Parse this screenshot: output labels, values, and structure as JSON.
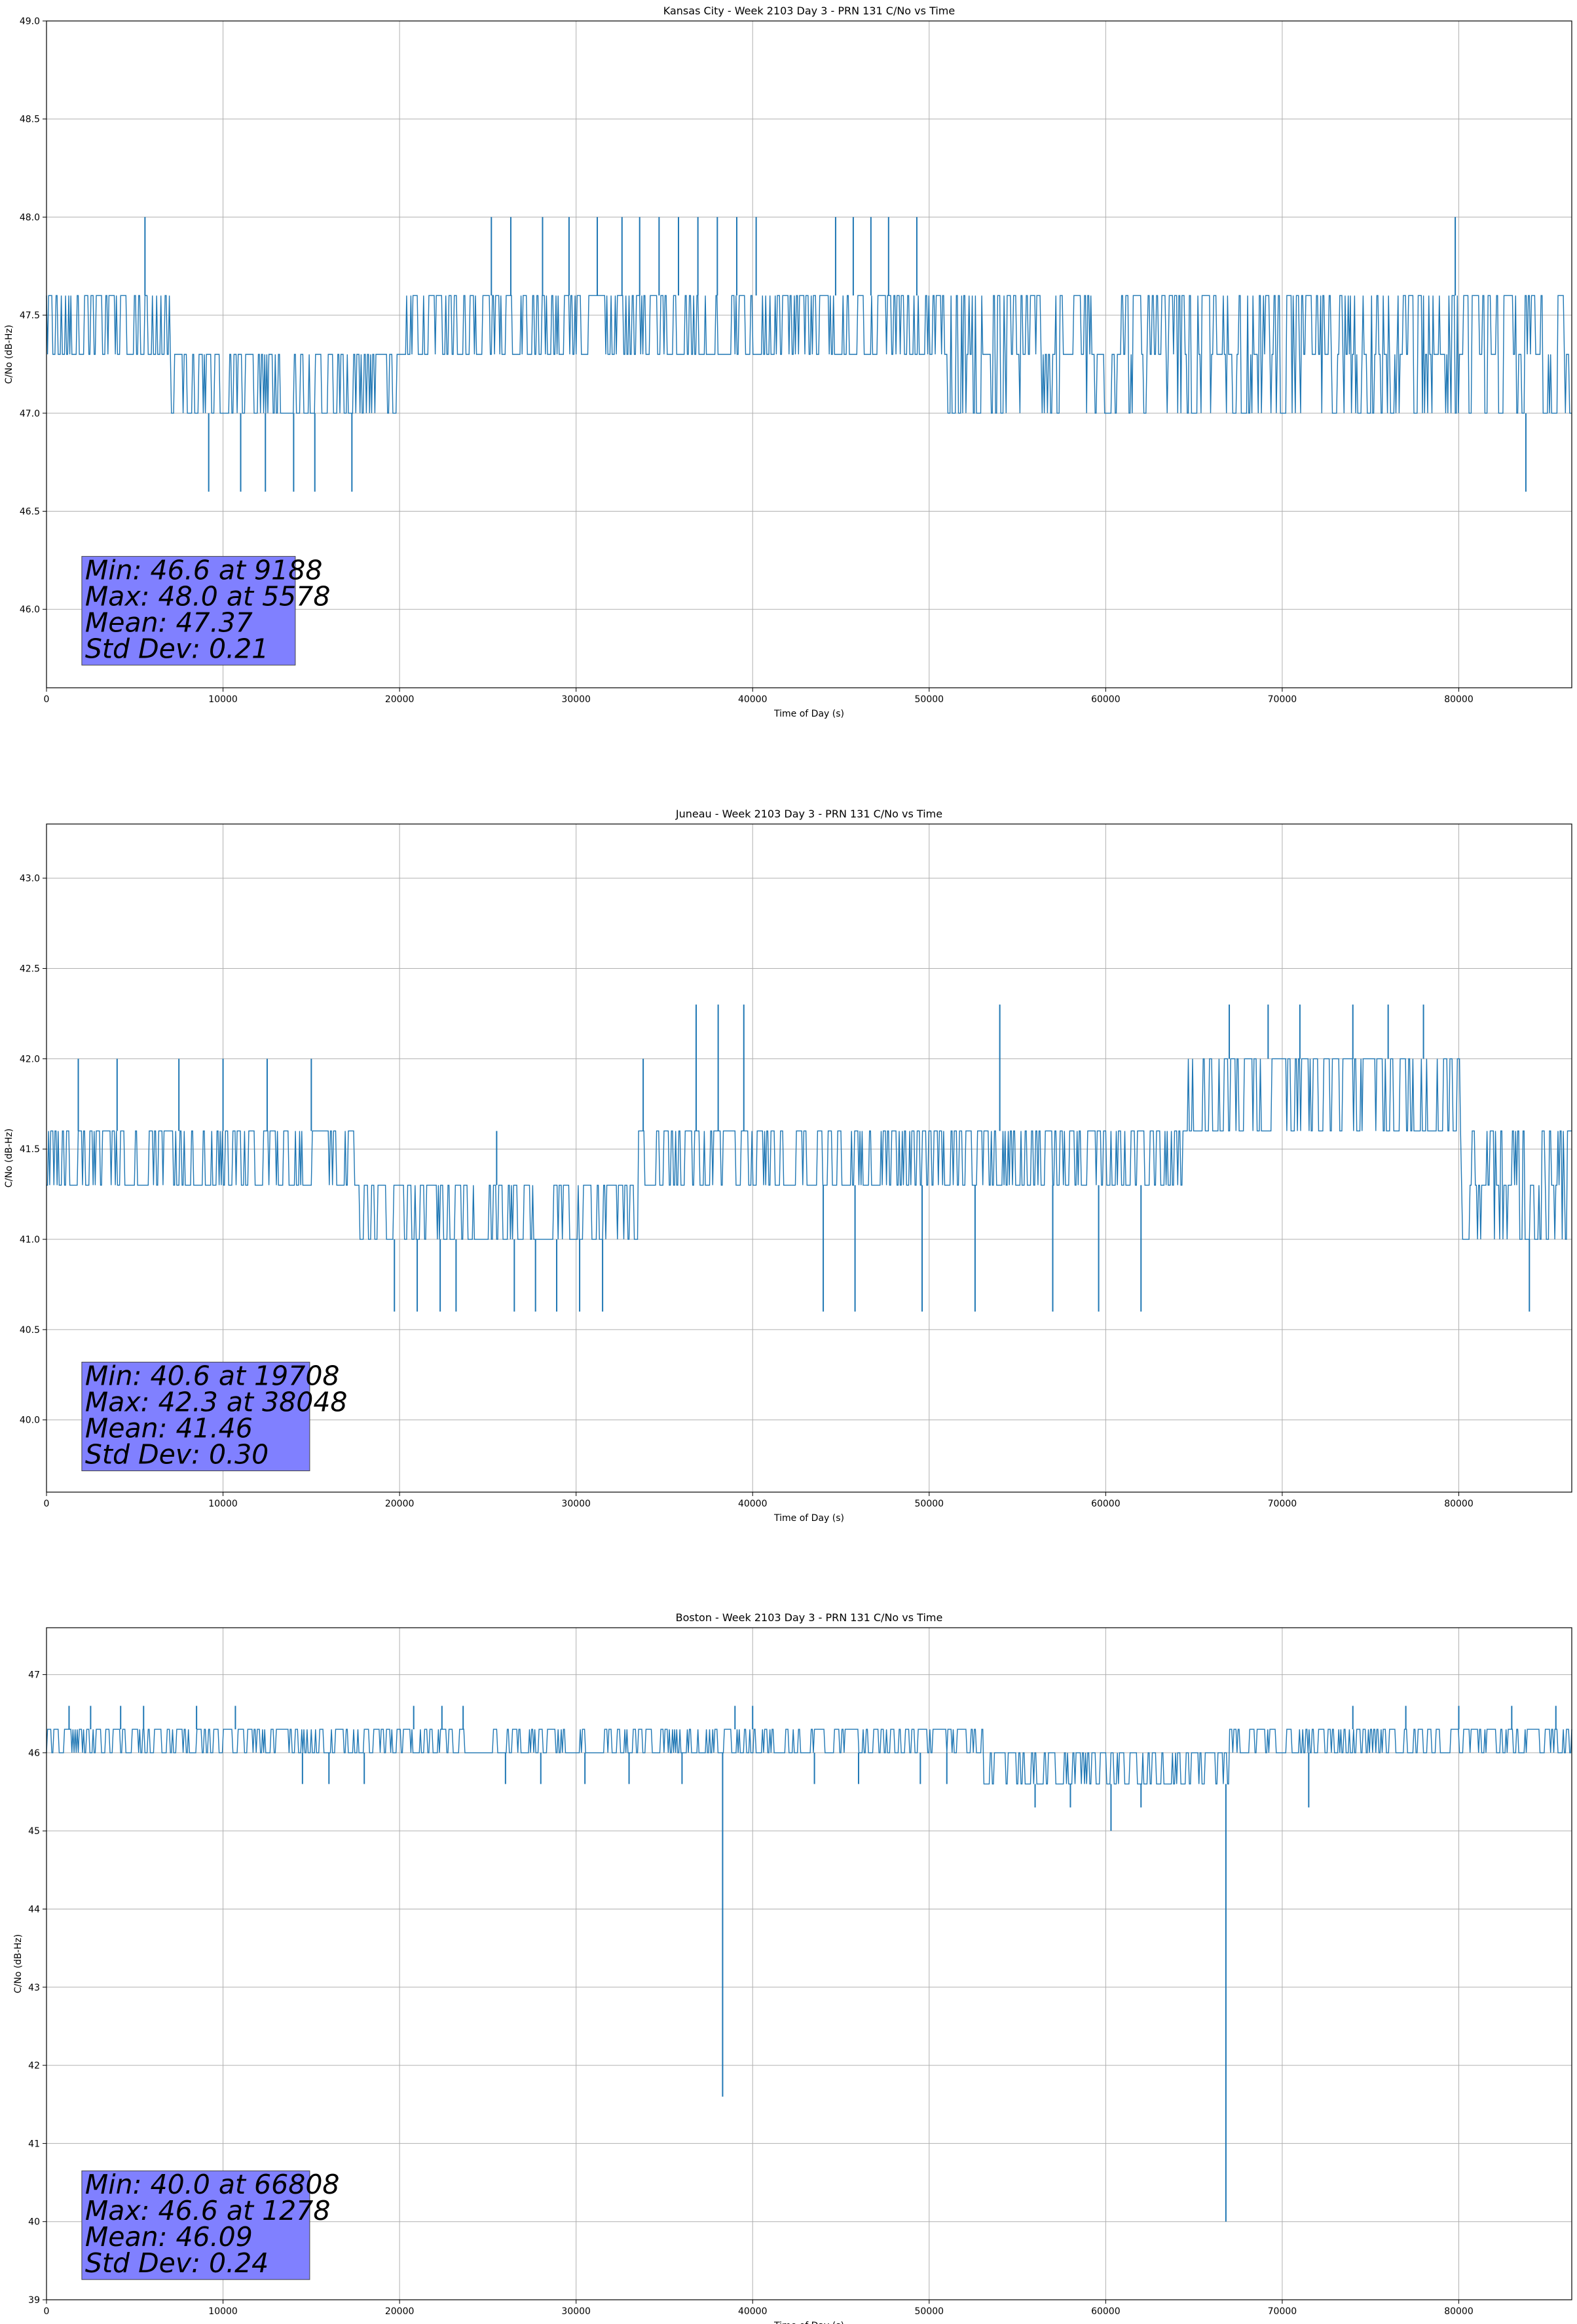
{
  "colors": {
    "series": "#1f77b4",
    "grid": "#b0b0b0",
    "stats_box": "#8080ff"
  },
  "chart_data": [
    {
      "type": "line",
      "title": "Kansas City - Week 2103 Day 3 - PRN 131 C/No vs Time",
      "xlabel": "Time of Day (s)",
      "ylabel": "C/No (dB-Hz)",
      "xlim": [
        0,
        86400
      ],
      "ylim": [
        45.6,
        49.0
      ],
      "xticks": [
        0,
        10000,
        20000,
        30000,
        40000,
        50000,
        60000,
        70000,
        80000
      ],
      "yticks": [
        46.0,
        46.5,
        47.0,
        47.5,
        48.0,
        48.5,
        49.0
      ],
      "grid": true,
      "quantization": [
        47.0,
        47.3,
        47.6
      ],
      "segments": [
        {
          "x": [
            0,
            7000
          ],
          "levels": [
            47.3,
            47.6
          ]
        },
        {
          "x": [
            7000,
            20000
          ],
          "levels": [
            47.0,
            47.3
          ]
        },
        {
          "x": [
            20000,
            51000
          ],
          "levels": [
            47.3,
            47.6
          ]
        },
        {
          "x": [
            51000,
            86400
          ],
          "levels": [
            47.0,
            47.3,
            47.6
          ]
        }
      ],
      "spikes": [
        {
          "x": 5578,
          "y": 48.0
        },
        {
          "x": 9188,
          "y": 46.6
        },
        {
          "x": 11000,
          "y": 46.6
        },
        {
          "x": 12400,
          "y": 46.6
        },
        {
          "x": 14000,
          "y": 46.6
        },
        {
          "x": 15200,
          "y": 46.6
        },
        {
          "x": 17300,
          "y": 46.6
        },
        {
          "x": 25200,
          "y": 48.0
        },
        {
          "x": 26300,
          "y": 48.0
        },
        {
          "x": 28100,
          "y": 48.0
        },
        {
          "x": 29600,
          "y": 48.0
        },
        {
          "x": 31200,
          "y": 48.0
        },
        {
          "x": 32600,
          "y": 48.0
        },
        {
          "x": 33600,
          "y": 48.0
        },
        {
          "x": 34700,
          "y": 48.0
        },
        {
          "x": 35800,
          "y": 48.0
        },
        {
          "x": 36900,
          "y": 48.0
        },
        {
          "x": 38000,
          "y": 48.0
        },
        {
          "x": 39100,
          "y": 48.0
        },
        {
          "x": 40200,
          "y": 48.0
        },
        {
          "x": 44700,
          "y": 48.0
        },
        {
          "x": 45700,
          "y": 48.0
        },
        {
          "x": 46700,
          "y": 48.0
        },
        {
          "x": 47700,
          "y": 48.0
        },
        {
          "x": 49300,
          "y": 48.0
        },
        {
          "x": 79800,
          "y": 48.0
        },
        {
          "x": 83800,
          "y": 46.6
        }
      ],
      "stats": {
        "min": "Min: 46.6 at 9188",
        "max": "Max: 48.0 at 5578",
        "mean": "Mean: 47.37",
        "std": "Std Dev: 0.21"
      },
      "stats_pos": [
        2000,
        46.27
      ]
    },
    {
      "type": "line",
      "title": "Juneau - Week 2103 Day 3 - PRN 131 C/No vs Time",
      "xlabel": "Time of Day (s)",
      "ylabel": "C/No (dB-Hz)",
      "xlim": [
        0,
        86400
      ],
      "ylim": [
        39.6,
        43.3
      ],
      "xticks": [
        0,
        10000,
        20000,
        30000,
        40000,
        50000,
        60000,
        70000,
        80000
      ],
      "yticks": [
        40.0,
        40.5,
        41.0,
        41.5,
        42.0,
        42.5,
        43.0
      ],
      "grid": true,
      "quantization": [
        41.0,
        41.3,
        41.6,
        42.0
      ],
      "segments": [
        {
          "x": [
            0,
            17500
          ],
          "levels": [
            41.3,
            41.6
          ]
        },
        {
          "x": [
            17500,
            33500
          ],
          "levels": [
            41.0,
            41.3
          ]
        },
        {
          "x": [
            33500,
            64500
          ],
          "levels": [
            41.3,
            41.6
          ]
        },
        {
          "x": [
            64500,
            80000
          ],
          "levels": [
            41.6,
            42.0
          ]
        },
        {
          "x": [
            80000,
            86400
          ],
          "levels": [
            41.0,
            41.3,
            41.6
          ]
        }
      ],
      "spikes": [
        {
          "x": 1800,
          "y": 42.0
        },
        {
          "x": 4000,
          "y": 42.0
        },
        {
          "x": 7500,
          "y": 42.0
        },
        {
          "x": 10000,
          "y": 42.0
        },
        {
          "x": 12500,
          "y": 42.0
        },
        {
          "x": 15000,
          "y": 42.0
        },
        {
          "x": 19708,
          "y": 40.6
        },
        {
          "x": 21000,
          "y": 40.6
        },
        {
          "x": 22300,
          "y": 40.6
        },
        {
          "x": 23200,
          "y": 40.6
        },
        {
          "x": 25500,
          "y": 41.6
        },
        {
          "x": 26500,
          "y": 40.6
        },
        {
          "x": 27700,
          "y": 40.6
        },
        {
          "x": 28900,
          "y": 40.6
        },
        {
          "x": 30200,
          "y": 40.6
        },
        {
          "x": 31500,
          "y": 40.6
        },
        {
          "x": 33800,
          "y": 42.0
        },
        {
          "x": 36800,
          "y": 42.3
        },
        {
          "x": 38048,
          "y": 42.3
        },
        {
          "x": 39500,
          "y": 42.3
        },
        {
          "x": 44000,
          "y": 40.6
        },
        {
          "x": 45800,
          "y": 40.6
        },
        {
          "x": 49600,
          "y": 40.6
        },
        {
          "x": 52600,
          "y": 40.6
        },
        {
          "x": 54000,
          "y": 42.3
        },
        {
          "x": 57000,
          "y": 40.6
        },
        {
          "x": 59600,
          "y": 40.6
        },
        {
          "x": 62000,
          "y": 40.6
        },
        {
          "x": 67000,
          "y": 42.3
        },
        {
          "x": 69200,
          "y": 42.3
        },
        {
          "x": 71000,
          "y": 42.3
        },
        {
          "x": 74000,
          "y": 42.3
        },
        {
          "x": 76000,
          "y": 42.3
        },
        {
          "x": 78000,
          "y": 42.3
        },
        {
          "x": 84000,
          "y": 40.6
        }
      ],
      "stats": {
        "min": "Min: 40.6 at 19708",
        "max": "Max: 42.3 at 38048",
        "mean": "Mean: 41.46",
        "std": "Std Dev: 0.30"
      },
      "stats_pos": [
        2000,
        40.32
      ]
    },
    {
      "type": "line",
      "title": "Boston - Week 2103 Day 3 - PRN 131 C/No vs Time",
      "xlabel": "Time of Day (s)",
      "ylabel": "C/No (dB-Hz)",
      "xlim": [
        0,
        86400
      ],
      "ylim": [
        39.0,
        47.6
      ],
      "xticks": [
        0,
        10000,
        20000,
        30000,
        40000,
        50000,
        60000,
        70000,
        80000
      ],
      "yticks": [
        39,
        40,
        41,
        42,
        43,
        44,
        45,
        46,
        47
      ],
      "grid": true,
      "quantization": [
        45.6,
        46.0,
        46.3,
        46.6
      ],
      "segments": [
        {
          "x": [
            0,
            53000
          ],
          "levels": [
            46.0,
            46.3
          ]
        },
        {
          "x": [
            53000,
            67000
          ],
          "levels": [
            45.6,
            46.0
          ]
        },
        {
          "x": [
            67000,
            86400
          ],
          "levels": [
            46.0,
            46.3
          ]
        }
      ],
      "spikes": [
        {
          "x": 1278,
          "y": 46.6
        },
        {
          "x": 2500,
          "y": 46.6
        },
        {
          "x": 4200,
          "y": 46.6
        },
        {
          "x": 5500,
          "y": 46.6
        },
        {
          "x": 8500,
          "y": 46.6
        },
        {
          "x": 10700,
          "y": 46.6
        },
        {
          "x": 14500,
          "y": 45.6
        },
        {
          "x": 16000,
          "y": 45.6
        },
        {
          "x": 18000,
          "y": 45.6
        },
        {
          "x": 20800,
          "y": 46.6
        },
        {
          "x": 22400,
          "y": 46.6
        },
        {
          "x": 23600,
          "y": 46.6
        },
        {
          "x": 26000,
          "y": 45.6
        },
        {
          "x": 28000,
          "y": 45.6
        },
        {
          "x": 30500,
          "y": 45.6
        },
        {
          "x": 33000,
          "y": 45.6
        },
        {
          "x": 36000,
          "y": 45.6
        },
        {
          "x": 38300,
          "y": 41.6
        },
        {
          "x": 39000,
          "y": 46.6
        },
        {
          "x": 40000,
          "y": 46.6
        },
        {
          "x": 43500,
          "y": 45.6
        },
        {
          "x": 46000,
          "y": 45.6
        },
        {
          "x": 49500,
          "y": 45.6
        },
        {
          "x": 51000,
          "y": 45.6
        },
        {
          "x": 56000,
          "y": 45.3
        },
        {
          "x": 58000,
          "y": 45.3
        },
        {
          "x": 60300,
          "y": 45.0
        },
        {
          "x": 62000,
          "y": 45.3
        },
        {
          "x": 66808,
          "y": 40.0
        },
        {
          "x": 71500,
          "y": 45.3
        },
        {
          "x": 74000,
          "y": 46.6
        },
        {
          "x": 77000,
          "y": 46.6
        },
        {
          "x": 80000,
          "y": 46.6
        },
        {
          "x": 83000,
          "y": 46.6
        },
        {
          "x": 85500,
          "y": 46.6
        }
      ],
      "stats": {
        "min": "Min: 40.0 at 66808",
        "max": "Max: 46.6 at 1278",
        "mean": "Mean: 46.09",
        "std": "Std Dev: 0.24"
      },
      "stats_pos": [
        2000,
        40.65
      ]
    }
  ]
}
